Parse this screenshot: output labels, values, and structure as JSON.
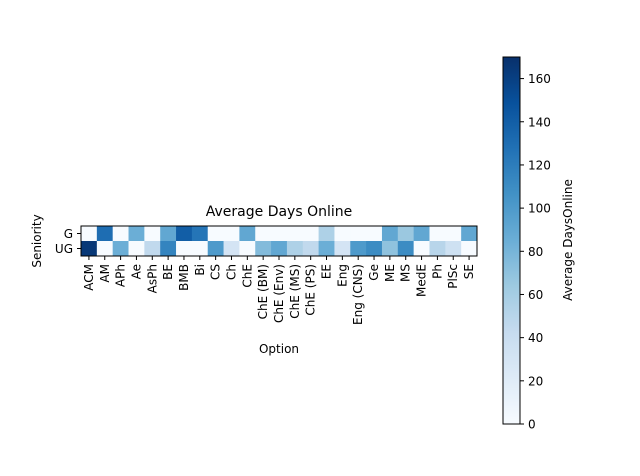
{
  "chart_data": {
    "type": "heatmap",
    "title": "Average Days Online",
    "xlabel": "Option",
    "ylabel": "Seniority",
    "x_categories": [
      "ACM",
      "AM",
      "APh",
      "Ae",
      "AsPh",
      "BE",
      "BMB",
      "Bi",
      "CS",
      "Ch",
      "ChE",
      "ChE (BM)",
      "ChE (Env)",
      "ChE (MS)",
      "ChE (PS)",
      "EE",
      "Eng",
      "Eng (CNS)",
      "Ge",
      "ME",
      "MS",
      "MedE",
      "Ph",
      "PlSc",
      "SE"
    ],
    "y_categories": [
      "G",
      "UG"
    ],
    "values": [
      [
        0,
        130,
        0,
        85,
        0,
        90,
        140,
        125,
        0,
        0,
        90,
        0,
        0,
        0,
        0,
        55,
        0,
        0,
        0,
        90,
        65,
        90,
        0,
        0,
        90
      ],
      [
        165,
        0,
        85,
        0,
        45,
        115,
        0,
        0,
        100,
        30,
        0,
        75,
        90,
        55,
        45,
        85,
        30,
        100,
        110,
        70,
        110,
        0,
        50,
        35,
        0
      ]
    ],
    "colorbar": {
      "label": "Average DaysOnline",
      "range": [
        0,
        170
      ],
      "ticks": [
        0,
        20,
        40,
        60,
        80,
        100,
        120,
        140,
        160
      ],
      "colormap": "Blues"
    }
  }
}
